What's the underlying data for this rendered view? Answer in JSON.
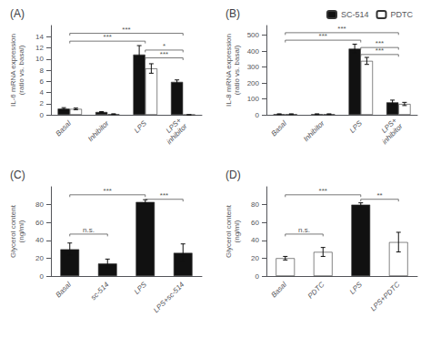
{
  "chart_data": [
    {
      "type": "bar",
      "title": "(A)",
      "ylabel": "IL-6 mRNA expression\n(ratio vs. basal)",
      "categories": [
        "Basal",
        "Inhibitor",
        "LPS",
        "LPS+\ninhibitor"
      ],
      "series": [
        {
          "color": "#111111",
          "values": [
            1.1,
            0.5,
            10.8,
            5.9
          ],
          "errors": [
            0.18,
            0.08,
            1.6,
            0.35
          ]
        },
        {
          "color": "#ffffff",
          "values": [
            1.05,
            0.12,
            8.3,
            0.0
          ],
          "errors": [
            0.15,
            0.06,
            0.85,
            0.0
          ]
        }
      ],
      "ylim": [
        0,
        16
      ],
      "yticks": [
        0,
        2,
        4,
        6,
        8,
        10,
        12,
        14
      ],
      "grid": false,
      "annotations": [
        {
          "text": "***",
          "x": [
            "Basal",
            "LPS"
          ],
          "y": 13.2
        },
        {
          "text": "***",
          "x": [
            "Basal",
            "LPS+\ninhibitor"
          ],
          "y": 14.6
        },
        {
          "text": "*",
          "x": [
            "LPS",
            "LPS+\ninhibitor"
          ],
          "y": 11.6
        },
        {
          "text": "***",
          "x": [
            "LPS",
            "LPS+\ninhibitor"
          ],
          "y": 10.2
        }
      ]
    },
    {
      "type": "bar",
      "title": "(B)",
      "ylabel": "IL-8 mRNA expression\n(ratio vs. basal)",
      "categories": [
        "Basal",
        "Inhibitor",
        "LPS",
        "LPS+\ninhibitor"
      ],
      "series": [
        {
          "name": "SC-514",
          "color": "#111111",
          "values": [
            4,
            4,
            415,
            78
          ],
          "errors": [
            2,
            2,
            28,
            14
          ]
        },
        {
          "name": "PDTC",
          "color": "#ffffff",
          "values": [
            4,
            4,
            338,
            68
          ],
          "errors": [
            2,
            2,
            22,
            10
          ]
        }
      ],
      "ylim": [
        0,
        560
      ],
      "yticks": [
        0,
        100,
        200,
        300,
        400,
        500
      ],
      "grid": false,
      "legend": "upper right",
      "annotations": [
        {
          "text": "***",
          "x": [
            "Basal",
            "LPS"
          ],
          "y": 468
        },
        {
          "text": "***",
          "x": [
            "Basal",
            "LPS+\ninhibitor"
          ],
          "y": 515
        },
        {
          "text": "***",
          "x": [
            "LPS",
            "LPS+\ninhibitor"
          ],
          "y": 422
        },
        {
          "text": "***",
          "x": [
            "LPS",
            "LPS+\ninhibitor"
          ],
          "y": 378
        }
      ]
    },
    {
      "type": "bar",
      "title": "(C)",
      "ylabel": "Glycerol content\n(ng/ml)",
      "categories": [
        "Basal",
        "sc-514",
        "LPS",
        "LPS+sc-514"
      ],
      "color": "#111111",
      "values": [
        30,
        14,
        83,
        26
      ],
      "errors": [
        7,
        5,
        2.5,
        10
      ],
      "ylim": [
        0,
        100
      ],
      "yticks": [
        0,
        20,
        40,
        60,
        80
      ],
      "grid": false,
      "annotations": [
        {
          "text": "n.s.",
          "x": [
            "Basal",
            "sc-514"
          ],
          "y": 47
        },
        {
          "text": "***",
          "x": [
            "Basal",
            "LPS"
          ],
          "y": 91
        },
        {
          "text": "***",
          "x": [
            "LPS",
            "LPS+sc-514"
          ],
          "y": 86
        }
      ]
    },
    {
      "type": "bar",
      "title": "(D)",
      "ylabel": "Glycerol content\n(ng/ml)",
      "categories": [
        "Basal",
        "PDTC",
        "LPS",
        "LPS+PDTC"
      ],
      "colors": [
        "#ffffff",
        "#ffffff",
        "#111111",
        "#ffffff"
      ],
      "values": [
        20,
        27,
        80,
        38
      ],
      "errors": [
        2,
        5,
        2,
        11
      ],
      "ylim": [
        0,
        100
      ],
      "yticks": [
        0,
        20,
        40,
        60,
        80
      ],
      "grid": false,
      "annotations": [
        {
          "text": "n.s.",
          "x": [
            "Basal",
            "PDTC"
          ],
          "y": 47
        },
        {
          "text": "***",
          "x": [
            "Basal",
            "LPS"
          ],
          "y": 91
        },
        {
          "text": "**",
          "x": [
            "LPS",
            "LPS+PDTC"
          ],
          "y": 86
        }
      ]
    }
  ]
}
